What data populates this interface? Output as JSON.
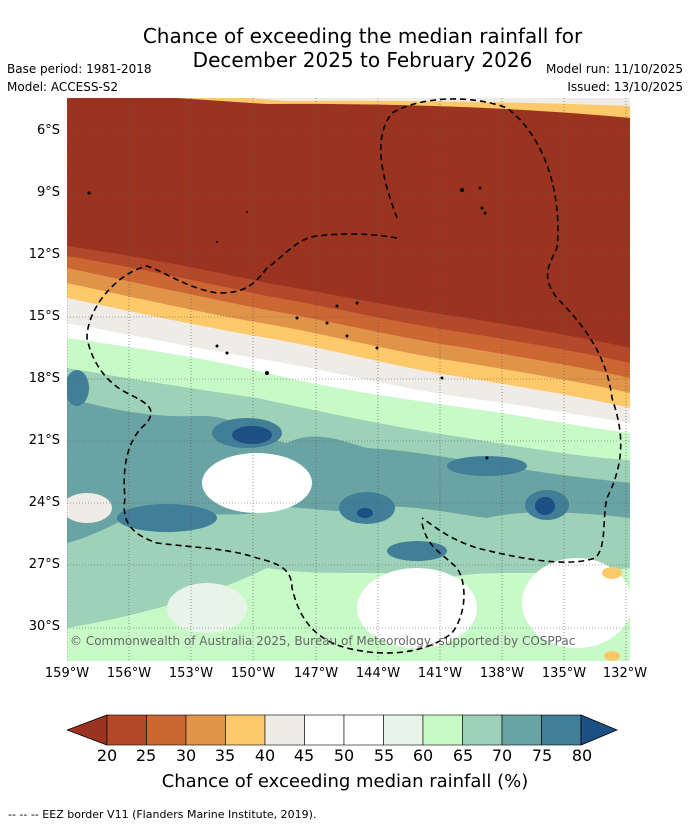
{
  "title": {
    "line1": "Chance of exceeding the median rainfall for",
    "line2": "December 2025 to February 2026"
  },
  "meta": {
    "base_period": "Base period: 1981-2018",
    "model": "Model: ACCESS-S2",
    "model_run": "Model run: 11/10/2025",
    "issued": "Issued: 13/10/2025"
  },
  "map": {
    "lat_labels": [
      "6°S",
      "9°S",
      "12°S",
      "15°S",
      "18°S",
      "21°S",
      "24°S",
      "27°S",
      "30°S"
    ],
    "lon_labels": [
      "159°W",
      "156°W",
      "153°W",
      "150°W",
      "147°W",
      "144°W",
      "141°W",
      "138°W",
      "135°W",
      "132°W"
    ],
    "copyright": "© Commonwealth of Australia 2025, Bureau of Meteorology, supported by COSPPac"
  },
  "colorbar": {
    "ticks": [
      "20",
      "25",
      "30",
      "35",
      "40",
      "45",
      "50",
      "55",
      "60",
      "65",
      "70",
      "75",
      "80"
    ],
    "colors": [
      "#9a3420",
      "#b3492a",
      "#cc6633",
      "#e0944a",
      "#fdc96a",
      "#efebe6",
      "#ffffff",
      "#ffffff",
      "#e8f4e8",
      "#c8fac8",
      "#9ed2b8",
      "#6aa3a3",
      "#417e98",
      "#1c4f84"
    ],
    "title": "Chance of exceeding median rainfall (%)"
  },
  "footer": "--  --  -- EEZ border V11 (Flanders Marine Institute, 2019)."
}
